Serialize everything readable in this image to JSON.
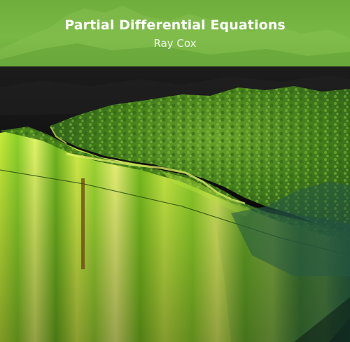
{
  "cover": {
    "title": "Partial Differential Equations",
    "author": "Ray Cox"
  },
  "colors": {
    "header_green": "#79b844",
    "terrain_green": "#4f8a22",
    "side_yellow_green": "#c8f03a",
    "background": "#000000"
  }
}
